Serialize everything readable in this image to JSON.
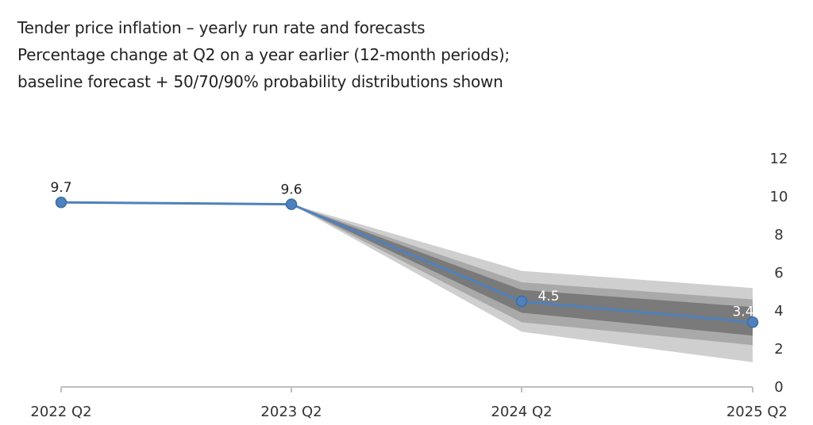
{
  "chart_data": {
    "type": "line",
    "title": "Tender price inflation – yearly run rate and forecasts",
    "subtitle_lines": [
      "Percentage change at Q2 on a year earlier (12-month periods);",
      "baseline forecast + 50/70/90% probability distributions shown"
    ],
    "categories": [
      "2022 Q2",
      "2023 Q2",
      "2024 Q2",
      "2025 Q2"
    ],
    "series": [
      {
        "values": [
          9.7,
          9.6,
          4.5,
          3.4
        ],
        "labels": [
          "9.7",
          "9.6",
          "4.5",
          "3.4"
        ],
        "color": "#4f81bd"
      }
    ],
    "forecast_bands": [
      {
        "probability": 90,
        "lower": [
          null,
          9.6,
          2.9,
          1.3
        ],
        "upper": [
          null,
          9.6,
          6.1,
          5.2
        ],
        "color": "#cfcfcf"
      },
      {
        "probability": 70,
        "lower": [
          null,
          9.6,
          3.4,
          2.2
        ],
        "upper": [
          null,
          9.6,
          5.5,
          4.6
        ],
        "color": "#a9a9a9"
      },
      {
        "probability": 50,
        "lower": [
          null,
          9.6,
          3.9,
          2.7
        ],
        "upper": [
          null,
          9.6,
          5.1,
          4.2
        ],
        "color": "#7a7a7a"
      }
    ],
    "yaxis": {
      "position": "right",
      "ticks": [
        "0",
        "2",
        "4",
        "6",
        "8",
        "10",
        "12"
      ],
      "ylim": [
        0,
        12
      ]
    },
    "grid": false,
    "legend": "none",
    "colors": {
      "line": "#4f81bd",
      "marker_fill": "#4f81bd",
      "marker_stroke": "#3b6ea5",
      "axis": "#bfbfbf",
      "label_dark": "#222222",
      "label_light": "#ffffff"
    }
  }
}
